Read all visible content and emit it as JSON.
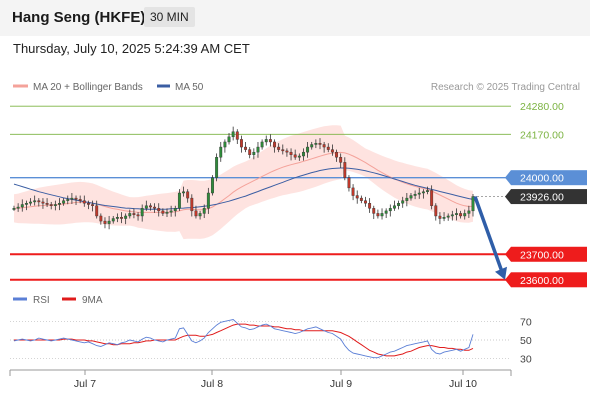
{
  "header": {
    "title": "Hang Seng (HKFE)",
    "interval": "30 MIN"
  },
  "datetime": "Thursday, July 10, 2025 5:24:39 AM CET",
  "legend": {
    "bb_label": "MA 20 + Bollinger Bands",
    "ma50_label": "MA 50",
    "credit": "Research © 2025 Trading Central",
    "rsi_label": "RSI",
    "rsi_ma_label": "9MA"
  },
  "colors": {
    "bb_band": "#fdd9d6",
    "bb_line": "#f4a29a",
    "ma50": "#3b5ea3",
    "resistance": "#7cb342",
    "pivot": "#5b8fd6",
    "support": "#ee1c1c",
    "arrow": "#2f5ea8",
    "rsi": "#5b7fd6",
    "rsi_ma": "#e01b1b",
    "candle_up": "#2e8b3a",
    "candle_down": "#c0392b"
  },
  "chart_data": {
    "type": "candlestick",
    "x_ticks": [
      "Jul 7",
      "Jul 8",
      "Jul 9",
      "Jul 10"
    ],
    "ylim": [
      23560,
      24320
    ],
    "levels": [
      {
        "label": "24280.00",
        "value": 24280,
        "kind": "resistance"
      },
      {
        "label": "24170.00",
        "value": 24170,
        "kind": "resistance"
      },
      {
        "label": "24000.00",
        "value": 24000,
        "kind": "pivot"
      },
      {
        "label": "23926.00",
        "value": 23926,
        "kind": "last"
      },
      {
        "label": "23700.00",
        "value": 23700,
        "kind": "support"
      },
      {
        "label": "23600.00",
        "value": 23600,
        "kind": "support"
      }
    ],
    "forecast_arrow": {
      "from": 23926,
      "to": 23600
    },
    "price_close": [
      23880,
      23885,
      23895,
      23900,
      23905,
      23910,
      23905,
      23900,
      23895,
      23890,
      23895,
      23900,
      23910,
      23915,
      23920,
      23915,
      23910,
      23900,
      23895,
      23890,
      23850,
      23830,
      23820,
      23830,
      23840,
      23845,
      23840,
      23850,
      23860,
      23855,
      23850,
      23880,
      23890,
      23885,
      23880,
      23870,
      23860,
      23865,
      23870,
      23880,
      23940,
      23945,
      23920,
      23870,
      23850,
      23860,
      23880,
      23940,
      24000,
      24080,
      24120,
      24140,
      24160,
      24180,
      24150,
      24120,
      24110,
      24090,
      24100,
      24120,
      24140,
      24150,
      24140,
      24120,
      24110,
      24105,
      24100,
      24090,
      24080,
      24085,
      24100,
      24120,
      24130,
      24135,
      24130,
      24120,
      24110,
      24100,
      24080,
      24060,
      24000,
      23960,
      23930,
      23920,
      23910,
      23900,
      23880,
      23860,
      23850,
      23860,
      23870,
      23880,
      23890,
      23900,
      23910,
      23920,
      23930,
      23935,
      23940,
      23945,
      23950,
      23890,
      23850,
      23840,
      23845,
      23850,
      23855,
      23860,
      23850,
      23860,
      23870,
      23926
    ],
    "ma20": [
      23880,
      23880,
      23882,
      23884,
      23886,
      23888,
      23890,
      23891,
      23892,
      23893,
      23894,
      23895,
      23897,
      23899,
      23901,
      23903,
      23904,
      23904,
      23903,
      23901,
      23897,
      23892,
      23887,
      23883,
      23879,
      23876,
      23873,
      23870,
      23868,
      23866,
      23864,
      23864,
      23864,
      23864,
      23864,
      23864,
      23864,
      23864,
      23865,
      23866,
      23870,
      23874,
      23876,
      23876,
      23875,
      23874,
      23875,
      23879,
      23885,
      23895,
      23906,
      23918,
      23930,
      23943,
      23954,
      23963,
      23972,
      23980,
      23988,
      23996,
      24005,
      24013,
      24021,
      24028,
      24035,
      24041,
      24046,
      24051,
      24055,
      24059,
      24064,
      24069,
      24074,
      24079,
      24084,
      24089,
      24093,
      24096,
      24098,
      24099,
      24097,
      24092,
      24085,
      24077,
      24068,
      24059,
      24049,
      24039,
      24029,
      24020,
      24011,
      24003,
      23995,
      23988,
      23982,
      23976,
      23971,
      23966,
      23962,
      23958,
      23955,
      23948,
      23940,
      23932,
      23924,
      23916,
      23908,
      23900,
      23894,
      23890,
      23887,
      23888
    ],
    "ma50": [
      23975,
      23970,
      23965,
      23960,
      23955,
      23950,
      23945,
      23941,
      23937,
      23933,
      23929,
      23925,
      23921,
      23918,
      23915,
      23912,
      23909,
      23906,
      23903,
      23900,
      23897,
      23894,
      23891,
      23889,
      23887,
      23885,
      23883,
      23881,
      23880,
      23879,
      23878,
      23877,
      23876,
      23876,
      23876,
      23876,
      23876,
      23877,
      23878,
      23879,
      23880,
      23881,
      23882,
      23883,
      23884,
      23886,
      23888,
      23890,
      23893,
      23896,
      23900,
      23904,
      23908,
      23913,
      23918,
      23923,
      23928,
      23934,
      23940,
      23946,
      23952,
      23958,
      23964,
      23970,
      23976,
      23982,
      23988,
      23994,
      24000,
      24005,
      24010,
      24015,
      24020,
      24024,
      24028,
      24031,
      24034,
      24036,
      24037,
      24038,
      24038,
      24037,
      24035,
      24033,
      24030,
      24027,
      24023,
      24019,
      24015,
      24010,
      24005,
      24000,
      23995,
      23990,
      23985,
      23980,
      23975,
      23970,
      23966,
      23962,
      23958,
      23954,
      23950,
      23946,
      23942,
      23938,
      23934,
      23930,
      23926,
      23922,
      23918,
      23915
    ],
    "rsi_axis": {
      "ticks": [
        70,
        50,
        30
      ],
      "ylim": [
        20,
        80
      ]
    },
    "rsi": [
      49,
      50,
      51,
      50,
      49,
      50,
      52,
      51,
      50,
      49,
      50,
      51,
      52,
      51,
      50,
      49,
      48,
      47,
      48,
      46,
      44,
      43,
      45,
      47,
      46,
      45,
      47,
      48,
      50,
      49,
      48,
      51,
      53,
      52,
      50,
      49,
      48,
      50,
      51,
      52,
      62,
      63,
      56,
      49,
      47,
      49,
      52,
      58,
      62,
      66,
      69,
      70,
      71,
      72,
      68,
      64,
      63,
      61,
      62,
      64,
      66,
      67,
      65,
      62,
      61,
      60,
      59,
      58,
      57,
      58,
      60,
      62,
      63,
      64,
      62,
      60,
      58,
      57,
      54,
      51,
      44,
      39,
      36,
      35,
      34,
      33,
      32,
      31,
      31,
      33,
      35,
      37,
      38,
      40,
      42,
      44,
      45,
      46,
      47,
      48,
      49,
      40,
      36,
      35,
      37,
      38,
      39,
      40,
      38,
      40,
      42,
      56
    ],
    "rsi_ma": [
      50,
      50,
      50,
      50,
      50,
      50,
      50,
      50,
      50,
      50,
      50,
      50,
      51,
      51,
      51,
      50,
      50,
      50,
      49,
      49,
      48,
      47,
      46,
      46,
      45,
      45,
      46,
      46,
      46,
      47,
      47,
      48,
      49,
      49,
      50,
      50,
      50,
      50,
      50,
      50,
      52,
      54,
      55,
      55,
      55,
      54,
      54,
      55,
      56,
      58,
      60,
      62,
      64,
      66,
      67,
      67,
      67,
      66,
      66,
      65,
      65,
      65,
      65,
      64,
      64,
      63,
      62,
      62,
      61,
      61,
      60,
      60,
      60,
      60,
      60,
      60,
      60,
      60,
      59,
      58,
      56,
      54,
      51,
      48,
      45,
      42,
      39,
      37,
      35,
      34,
      33,
      33,
      33,
      34,
      35,
      37,
      38,
      40,
      42,
      43,
      44,
      44,
      43,
      42,
      42,
      41,
      41,
      40,
      40,
      39,
      39,
      41
    ]
  }
}
